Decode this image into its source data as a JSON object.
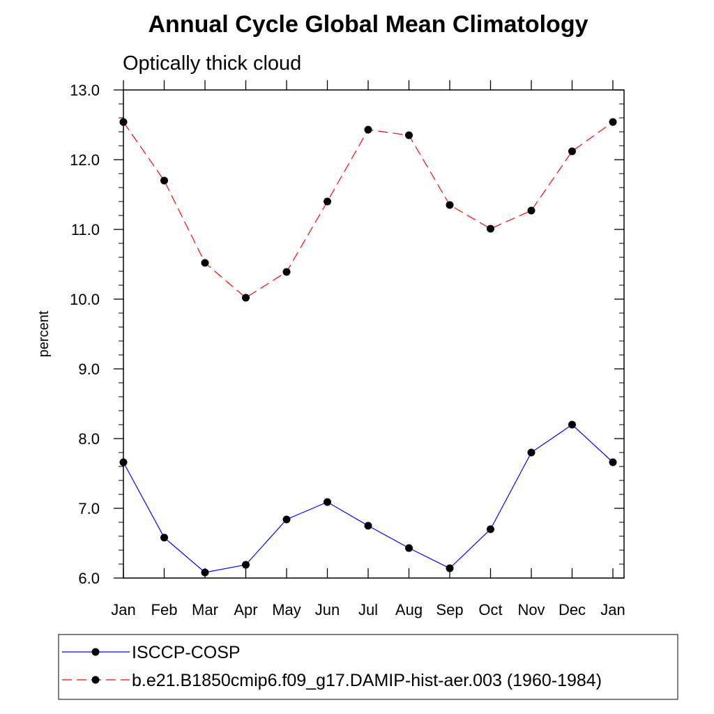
{
  "chart_data": {
    "type": "line",
    "title": "Annual Cycle Global Mean Climatology",
    "subtitle": "Optically thick cloud",
    "xlabel": "",
    "ylabel": "percent",
    "categories": [
      "Jan",
      "Feb",
      "Mar",
      "Apr",
      "May",
      "Jun",
      "Jul",
      "Aug",
      "Sep",
      "Oct",
      "Nov",
      "Dec",
      "Jan"
    ],
    "ylim": [
      6.0,
      13.0
    ],
    "yticks": [
      "6.0",
      "7.0",
      "8.0",
      "9.0",
      "10.0",
      "11.0",
      "12.0",
      "13.0"
    ],
    "grid": false,
    "legend_position": "bottom",
    "series": [
      {
        "name": "ISCCP-COSP",
        "color": "#0000ff",
        "line_style": "solid",
        "marker": "filled-circle",
        "values": [
          7.66,
          6.58,
          6.08,
          6.19,
          6.84,
          7.09,
          6.75,
          6.43,
          6.14,
          6.7,
          7.8,
          8.2,
          7.66
        ]
      },
      {
        "name": "b.e21.B1850cmip6.f09_g17.DAMIP-hist-aer.003 (1960-1984)",
        "color": "#ff0000",
        "line_style": "dashed",
        "marker": "filled-circle",
        "values": [
          12.54,
          11.7,
          10.52,
          10.02,
          10.39,
          11.4,
          12.43,
          12.35,
          11.35,
          11.01,
          11.27,
          12.12,
          12.54
        ]
      }
    ]
  }
}
